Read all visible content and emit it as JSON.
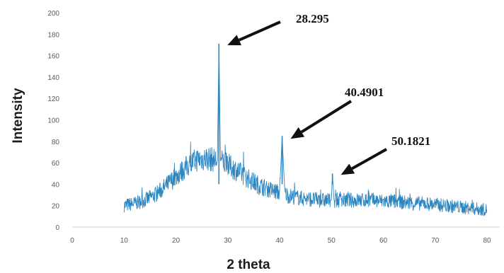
{
  "chart_data": {
    "type": "line",
    "xlabel": "2 theta",
    "ylabel": "Intensity",
    "xlim": [
      0,
      80
    ],
    "ylim": [
      0,
      200
    ],
    "x_ticks": [
      0,
      10,
      20,
      30,
      40,
      50,
      60,
      70,
      80
    ],
    "y_ticks": [
      0,
      20,
      40,
      60,
      80,
      100,
      120,
      140,
      160,
      180,
      200
    ],
    "grid": false,
    "legend": "none",
    "line_color": "#2e86c1",
    "series": [
      {
        "x": [
          10,
          12,
          14,
          16,
          18,
          20,
          22,
          24,
          26,
          27,
          28,
          28.295,
          28.6,
          30,
          32,
          34,
          36,
          38,
          40,
          40.4901,
          41,
          42,
          44,
          46,
          48,
          50,
          50.1821,
          50.5,
          52,
          54,
          56,
          58,
          60,
          62,
          64,
          66,
          68,
          70,
          72,
          74,
          76,
          78,
          80
        ],
        "y": [
          20,
          22,
          25,
          30,
          38,
          47,
          56,
          63,
          64,
          63,
          62,
          171,
          62,
          58,
          52,
          45,
          39,
          35,
          32,
          85,
          31,
          29,
          27,
          26,
          25,
          25,
          50,
          25,
          25,
          25,
          25,
          25,
          24,
          24,
          23,
          22,
          22,
          21,
          20,
          19,
          18,
          17,
          16
        ]
      }
    ],
    "annotations": [
      {
        "label": "28.295",
        "x": 28.295,
        "y": 171
      },
      {
        "label": "40.4901",
        "x": 40.4901,
        "y": 85
      },
      {
        "label": "50.1821",
        "x": 50.1821,
        "y": 50
      }
    ]
  }
}
